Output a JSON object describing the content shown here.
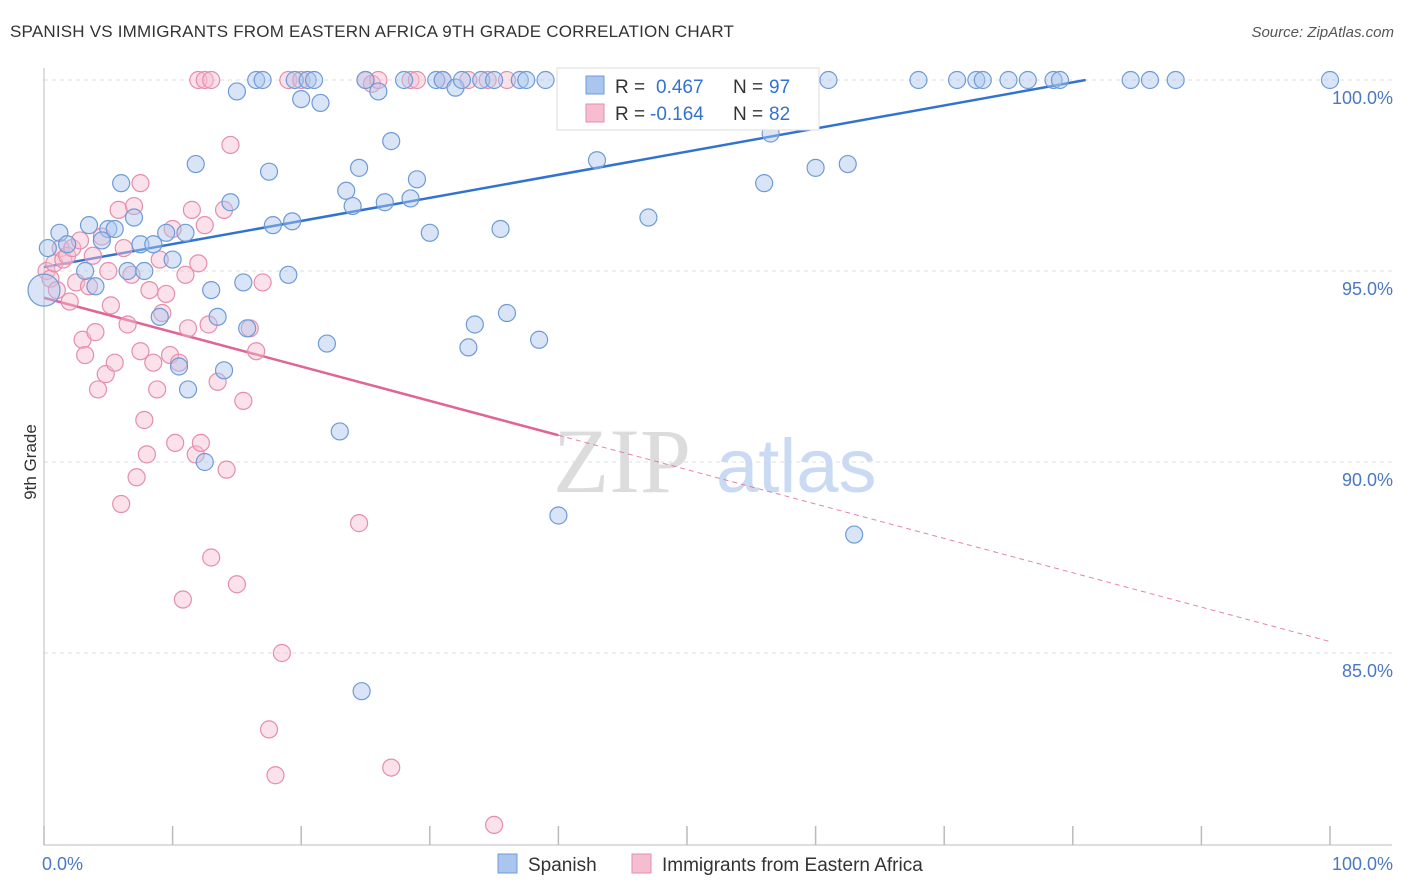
{
  "title": "SPANISH VS IMMIGRANTS FROM EASTERN AFRICA 9TH GRADE CORRELATION CHART",
  "source": "Source: ZipAtlas.com",
  "watermark": {
    "zip": "ZIP",
    "atlas": "atlas"
  },
  "colors": {
    "blue_fill": "#aac6ee",
    "blue_stroke": "#6d9bd8",
    "blue_line": "#3273d0",
    "pink_fill": "#f6bcd0",
    "pink_stroke": "#e58eac",
    "pink_line": "#e06595",
    "tick_text": "#4a78c2",
    "grid": "#dddddd"
  },
  "stats": {
    "r_label": "R =",
    "n_label": "N =",
    "spanish": {
      "r": "0.467",
      "n": "97"
    },
    "eastern_africa": {
      "r": "-0.164",
      "n": "82"
    }
  },
  "chart_data": {
    "type": "scatter",
    "title": "SPANISH VS IMMIGRANTS FROM EASTERN AFRICA 9TH GRADE CORRELATION CHART",
    "xlabel": "",
    "ylabel": "9th Grade",
    "xlim": [
      0,
      100
    ],
    "ylim": [
      80.4,
      100.4
    ],
    "x_tick_labels": [
      "0.0%",
      "100.0%"
    ],
    "y_ticks": [
      85,
      90,
      95,
      100
    ],
    "y_tick_labels": [
      "85.0%",
      "90.0%",
      "95.0%",
      "100.0%"
    ],
    "grid": true,
    "legend_position": "bottom-center",
    "series": [
      {
        "name": "Spanish",
        "color": "#aac6ee",
        "trend": {
          "x": [
            0,
            81
          ],
          "y": [
            95.1,
            100.0
          ]
        },
        "points": [
          [
            0,
            94.5
          ],
          [
            0.3,
            95.6
          ],
          [
            1.2,
            96.0
          ],
          [
            1.8,
            95.7
          ],
          [
            3.5,
            96.2
          ],
          [
            3.2,
            95.0
          ],
          [
            4.0,
            94.6
          ],
          [
            5.0,
            96.1
          ],
          [
            4.5,
            95.8
          ],
          [
            5.5,
            96.1
          ],
          [
            6.0,
            97.3
          ],
          [
            6.5,
            95.0
          ],
          [
            7.0,
            96.4
          ],
          [
            7.5,
            95.7
          ],
          [
            7.8,
            95.0
          ],
          [
            8.5,
            95.7
          ],
          [
            9.0,
            93.8
          ],
          [
            9.5,
            96.0
          ],
          [
            10.0,
            95.3
          ],
          [
            10.5,
            92.5
          ],
          [
            11.0,
            96.0
          ],
          [
            11.2,
            91.9
          ],
          [
            11.8,
            97.8
          ],
          [
            12.5,
            90.0
          ],
          [
            13.0,
            94.5
          ],
          [
            13.5,
            93.8
          ],
          [
            14.0,
            92.4
          ],
          [
            14.5,
            96.8
          ],
          [
            15.0,
            99.7
          ],
          [
            15.5,
            94.7
          ],
          [
            15.8,
            93.5
          ],
          [
            16.5,
            100.0
          ],
          [
            17.0,
            100.0
          ],
          [
            17.5,
            97.6
          ],
          [
            17.8,
            96.2
          ],
          [
            19.0,
            94.9
          ],
          [
            19.3,
            96.3
          ],
          [
            19.5,
            100.0
          ],
          [
            20.0,
            99.5
          ],
          [
            20.5,
            100.0
          ],
          [
            21.0,
            100.0
          ],
          [
            21.5,
            99.4
          ],
          [
            22.0,
            93.1
          ],
          [
            23.0,
            90.8
          ],
          [
            23.5,
            97.1
          ],
          [
            24.0,
            96.7
          ],
          [
            24.5,
            97.7
          ],
          [
            24.7,
            84.0
          ],
          [
            25.0,
            100.0
          ],
          [
            26.0,
            99.7
          ],
          [
            26.5,
            96.8
          ],
          [
            27.0,
            98.4
          ],
          [
            28.0,
            100.0
          ],
          [
            28.5,
            96.9
          ],
          [
            29.0,
            97.4
          ],
          [
            30.0,
            96.0
          ],
          [
            30.5,
            100.0
          ],
          [
            31.0,
            100.0
          ],
          [
            32.0,
            99.8
          ],
          [
            32.5,
            100.0
          ],
          [
            33.0,
            93.0
          ],
          [
            33.5,
            93.6
          ],
          [
            34.0,
            100.0
          ],
          [
            35.0,
            100.0
          ],
          [
            35.5,
            96.1
          ],
          [
            36.0,
            93.9
          ],
          [
            37.0,
            100.0
          ],
          [
            37.5,
            100.0
          ],
          [
            38.5,
            93.2
          ],
          [
            39.0,
            100.0
          ],
          [
            40.0,
            88.6
          ],
          [
            41.0,
            100.0
          ],
          [
            43.0,
            97.9
          ],
          [
            45.0,
            100.0
          ],
          [
            47.0,
            96.4
          ],
          [
            50.0,
            100.0
          ],
          [
            54.0,
            100.0
          ],
          [
            55.0,
            99.4
          ],
          [
            56.0,
            97.3
          ],
          [
            56.5,
            98.6
          ],
          [
            59.0,
            100.0
          ],
          [
            60.0,
            97.7
          ],
          [
            61.0,
            100.0
          ],
          [
            62.5,
            97.8
          ],
          [
            63.0,
            88.1
          ],
          [
            68.0,
            100.0
          ],
          [
            71.0,
            100.0
          ],
          [
            72.5,
            100.0
          ],
          [
            73.0,
            100.0
          ],
          [
            75.0,
            100.0
          ],
          [
            76.5,
            100.0
          ],
          [
            78.5,
            100.0
          ],
          [
            79.0,
            100.0
          ],
          [
            84.5,
            100.0
          ],
          [
            86.0,
            100.0
          ],
          [
            88.0,
            100.0
          ],
          [
            100.0,
            100.0
          ]
        ]
      },
      {
        "name": "Immigrants from Eastern Africa",
        "color": "#f6bcd0",
        "trend": {
          "x": [
            0,
            40
          ],
          "y": [
            94.3,
            90.7
          ]
        },
        "trend_extension": {
          "x": [
            40,
            100
          ],
          "y": [
            90.7,
            85.3
          ]
        },
        "points": [
          [
            0.2,
            95.0
          ],
          [
            0.5,
            94.8
          ],
          [
            0.8,
            95.2
          ],
          [
            1.0,
            94.5
          ],
          [
            1.3,
            95.6
          ],
          [
            1.5,
            95.3
          ],
          [
            1.8,
            95.4
          ],
          [
            2.0,
            94.2
          ],
          [
            2.2,
            95.6
          ],
          [
            2.5,
            94.7
          ],
          [
            2.8,
            95.8
          ],
          [
            3.0,
            93.2
          ],
          [
            3.2,
            92.8
          ],
          [
            3.5,
            94.6
          ],
          [
            3.8,
            95.4
          ],
          [
            4.0,
            93.4
          ],
          [
            4.2,
            91.9
          ],
          [
            4.5,
            95.9
          ],
          [
            4.8,
            92.3
          ],
          [
            5.0,
            95.0
          ],
          [
            5.2,
            94.1
          ],
          [
            5.5,
            92.6
          ],
          [
            5.8,
            96.6
          ],
          [
            6.0,
            88.9
          ],
          [
            6.2,
            95.6
          ],
          [
            6.5,
            93.6
          ],
          [
            6.8,
            94.9
          ],
          [
            7.0,
            96.7
          ],
          [
            7.2,
            89.6
          ],
          [
            7.5,
            92.9
          ],
          [
            7.8,
            91.1
          ],
          [
            8.0,
            90.2
          ],
          [
            8.2,
            94.5
          ],
          [
            8.5,
            92.6
          ],
          [
            8.8,
            91.9
          ],
          [
            9.0,
            95.3
          ],
          [
            9.2,
            93.9
          ],
          [
            9.5,
            94.4
          ],
          [
            9.8,
            92.8
          ],
          [
            10.0,
            96.1
          ],
          [
            10.2,
            90.5
          ],
          [
            10.5,
            92.6
          ],
          [
            10.8,
            86.4
          ],
          [
            11.0,
            94.9
          ],
          [
            11.2,
            93.5
          ],
          [
            11.5,
            96.6
          ],
          [
            11.8,
            90.2
          ],
          [
            12.0,
            95.2
          ],
          [
            12.2,
            90.5
          ],
          [
            12.5,
            96.2
          ],
          [
            12.8,
            93.6
          ],
          [
            13.0,
            87.5
          ],
          [
            13.5,
            92.1
          ],
          [
            14.0,
            96.6
          ],
          [
            14.2,
            89.8
          ],
          [
            14.5,
            98.3
          ],
          [
            15.0,
            86.8
          ],
          [
            15.5,
            91.6
          ],
          [
            16.0,
            93.5
          ],
          [
            16.5,
            92.9
          ],
          [
            17.0,
            94.7
          ],
          [
            17.5,
            83.0
          ],
          [
            18.0,
            81.8
          ],
          [
            18.5,
            85.0
          ],
          [
            19.0,
            100.0
          ],
          [
            20.0,
            100.0
          ],
          [
            24.5,
            88.4
          ],
          [
            25.0,
            100.0
          ],
          [
            25.5,
            99.9
          ],
          [
            26.0,
            100.0
          ],
          [
            27.0,
            82.0
          ],
          [
            28.5,
            100.0
          ],
          [
            29.0,
            100.0
          ],
          [
            31.0,
            100.0
          ],
          [
            34.5,
            100.0
          ],
          [
            35.0,
            80.5
          ],
          [
            12.0,
            100.0
          ],
          [
            12.5,
            100.0
          ],
          [
            13.0,
            100.0
          ],
          [
            7.5,
            97.3
          ],
          [
            33.0,
            100.0
          ],
          [
            36.0,
            100.0
          ]
        ]
      }
    ]
  },
  "legend": {
    "spanish": "Spanish",
    "eastern_africa": "Immigrants from Eastern Africa"
  }
}
